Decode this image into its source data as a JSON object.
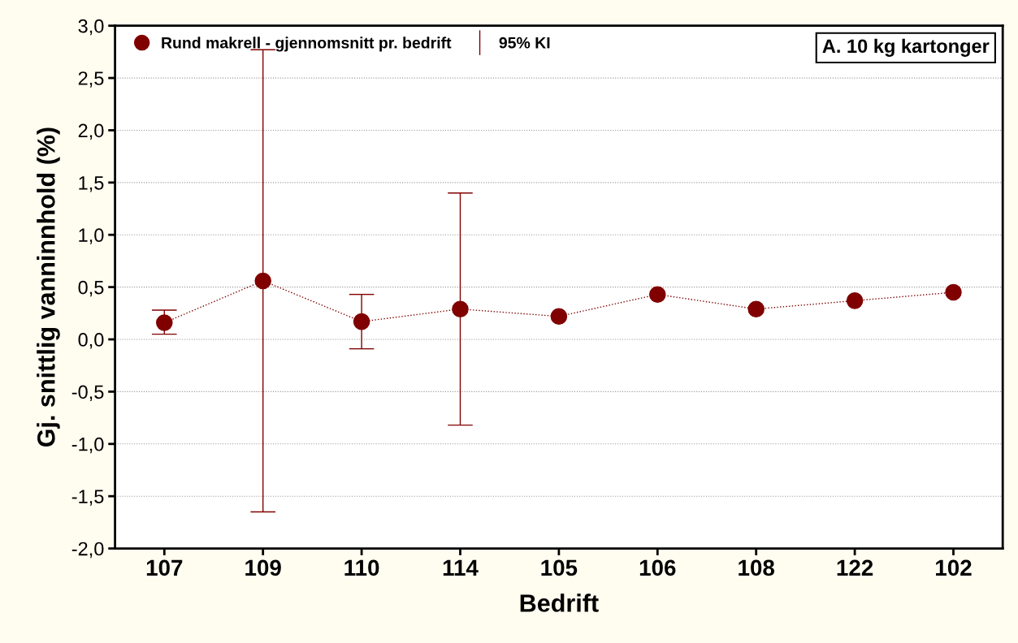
{
  "chart_data": {
    "type": "line",
    "xlabel": "Bedrift",
    "ylabel": "Gj. snittlig vanninnhold (%)",
    "categories": [
      "107",
      "109",
      "110",
      "114",
      "105",
      "106",
      "108",
      "122",
      "102"
    ],
    "series": [
      {
        "name": "Rund makrell - gjennomsnitt pr. bedrift",
        "color": "#800000",
        "values": [
          0.16,
          0.56,
          0.17,
          0.29,
          0.22,
          0.43,
          0.29,
          0.37,
          0.45
        ],
        "errors": [
          [
            0.05,
            0.28
          ],
          [
            -1.65,
            2.77
          ],
          [
            -0.09,
            0.43
          ],
          [
            -0.82,
            1.4
          ],
          null,
          null,
          null,
          null,
          null
        ]
      }
    ],
    "annotations": [
      "95% KI",
      "A. 10 kg kartonger"
    ],
    "ylim": [
      -2.0,
      3.0
    ],
    "yticks": [
      {
        "value": -2.0,
        "label": "-2,0"
      },
      {
        "value": -1.5,
        "label": "-1,5"
      },
      {
        "value": -1.0,
        "label": "-1,0"
      },
      {
        "value": -0.5,
        "label": "-0,5"
      },
      {
        "value": 0.0,
        "label": "0,0"
      },
      {
        "value": 0.5,
        "label": "0,5"
      },
      {
        "value": 1.0,
        "label": "1,0"
      },
      {
        "value": 1.5,
        "label": "1,5"
      },
      {
        "value": 2.0,
        "label": "2,0"
      },
      {
        "value": 2.5,
        "label": "2,5"
      },
      {
        "value": 3.0,
        "label": "3,0"
      }
    ],
    "grid": "y",
    "legend": "top left",
    "marker": "circle",
    "line_style": "dotted"
  }
}
